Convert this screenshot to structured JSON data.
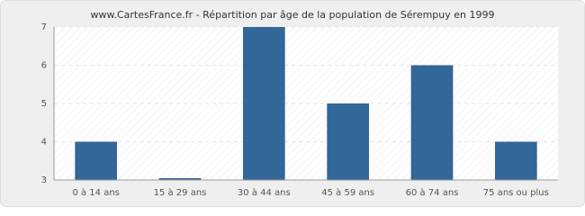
{
  "chart_data": {
    "type": "bar",
    "title": "www.CartesFrance.fr - Répartition par âge de la population de Sérempuy en 1999",
    "categories": [
      "0 à 14 ans",
      "15 à 29 ans",
      "30 à 44 ans",
      "45 à 59 ans",
      "60 à 74 ans",
      "75 ans ou plus"
    ],
    "values": [
      4,
      3,
      7,
      5,
      6,
      4
    ],
    "color": "#336699",
    "ylim": [
      3,
      7
    ],
    "yticks": [
      3,
      4,
      5,
      6,
      7
    ],
    "grid": true
  }
}
